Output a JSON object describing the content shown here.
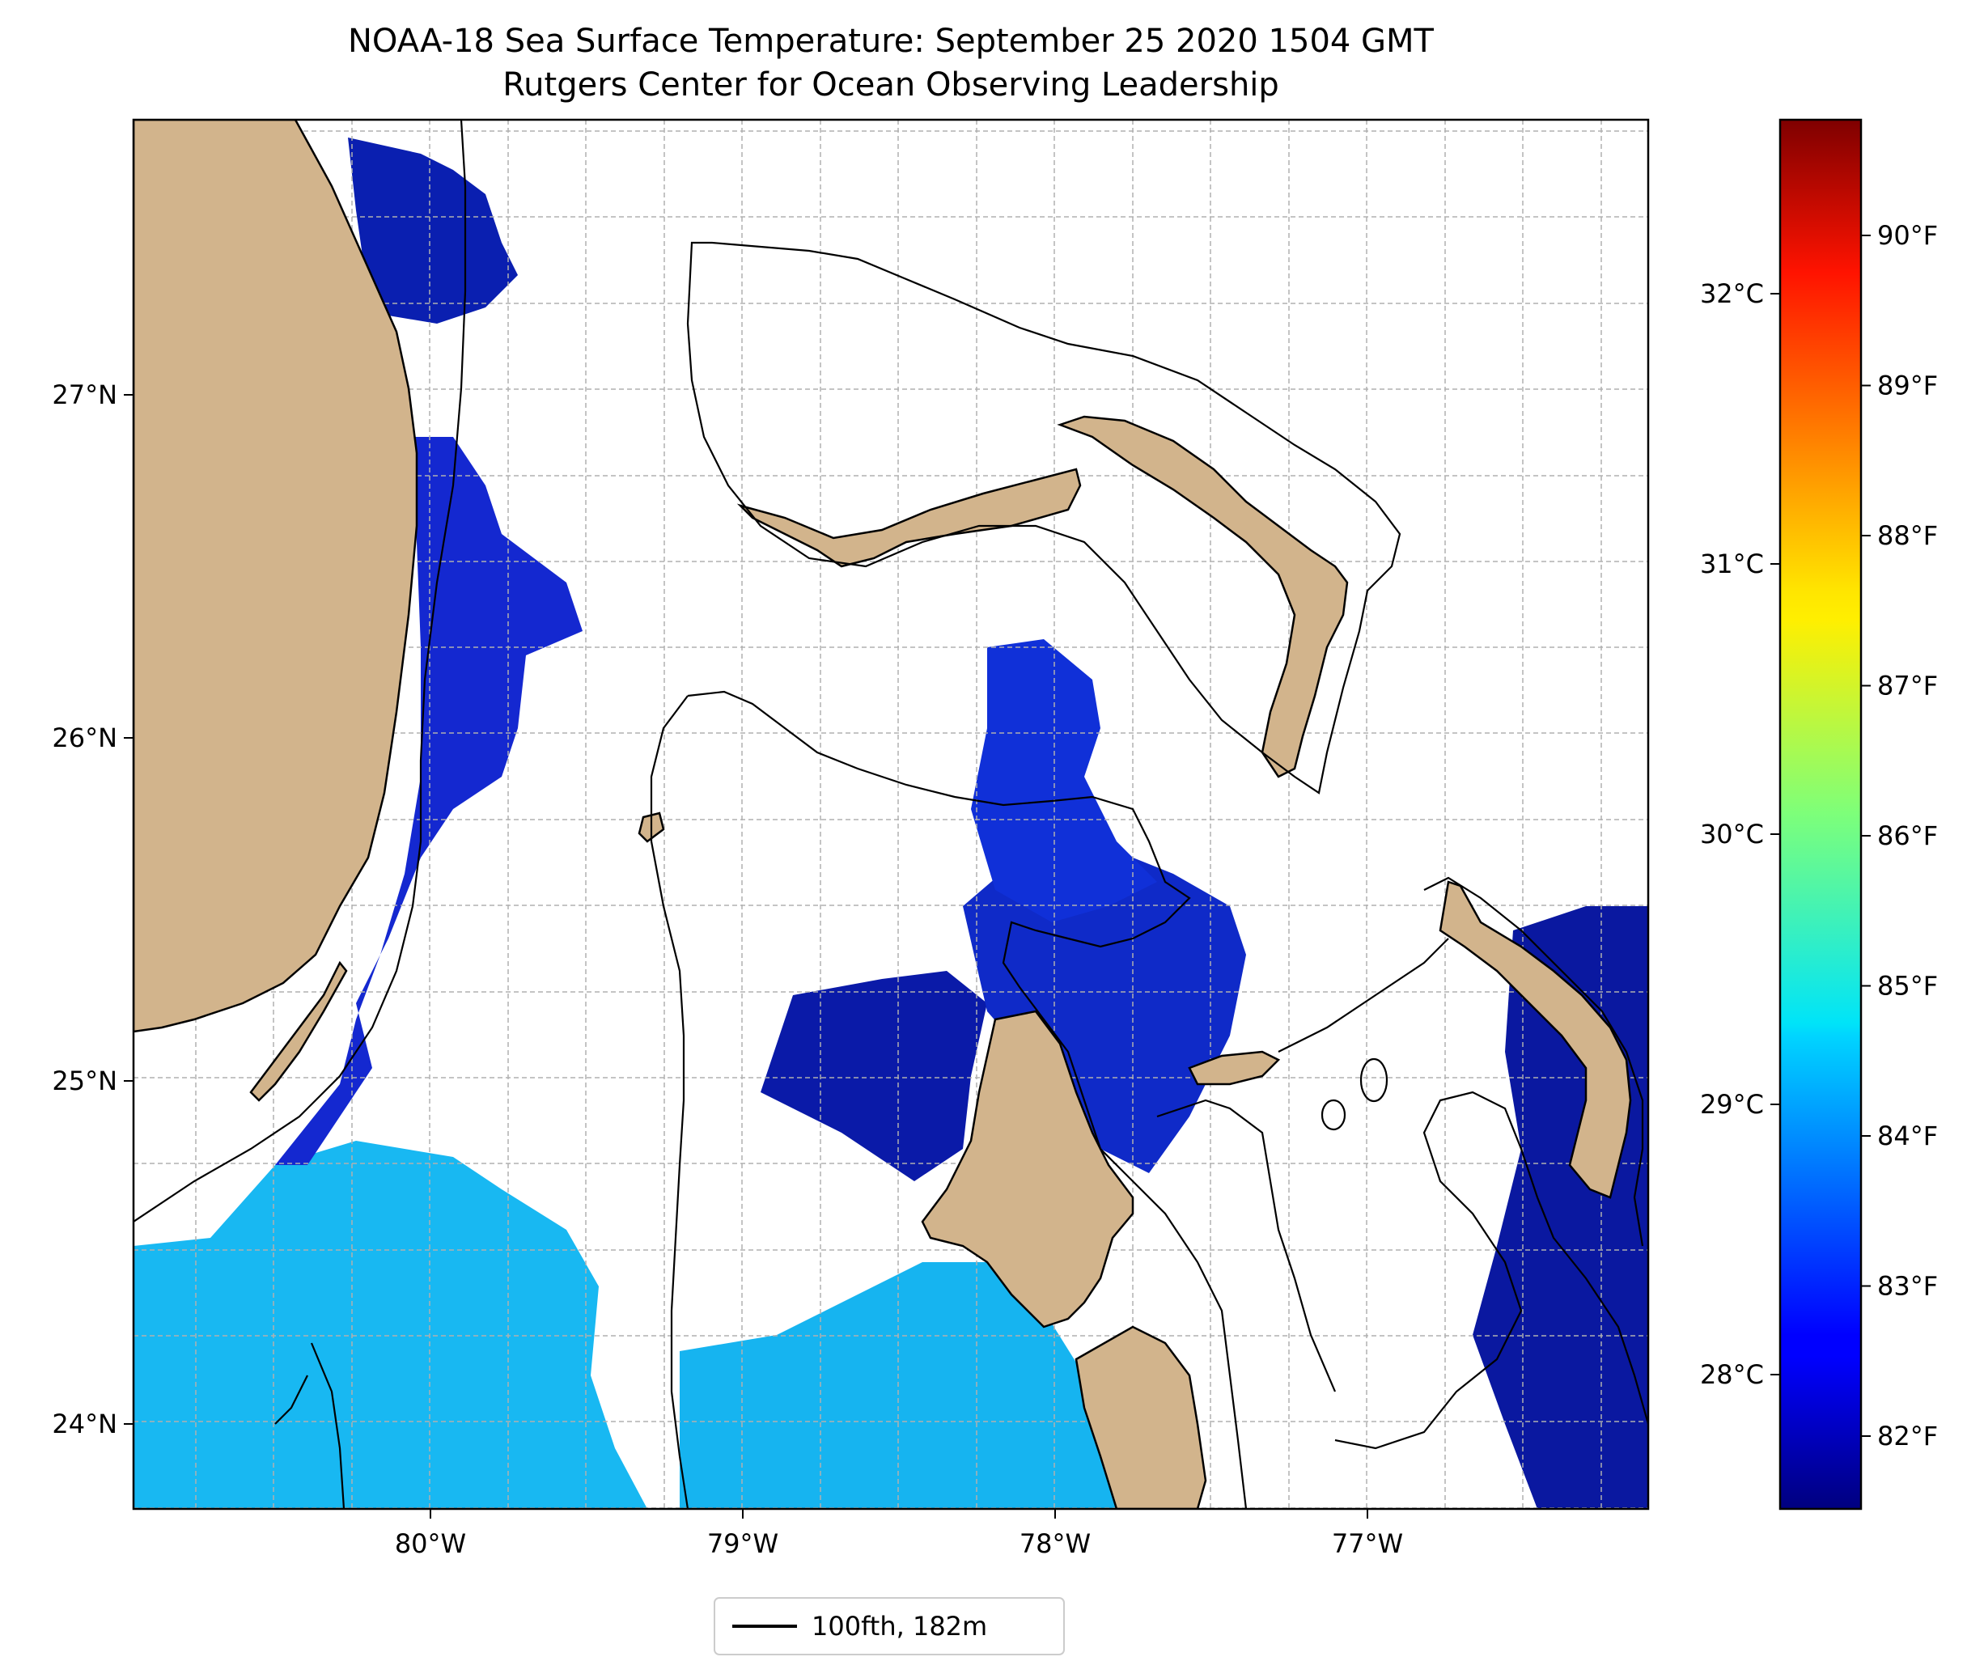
{
  "title": {
    "line1": "NOAA-18 Sea Surface Temperature: September 25 2020 1504 GMT",
    "line2": "Rutgers Center for Ocean Observing Leadership"
  },
  "map": {
    "extent": {
      "lon_min": -80.96,
      "lon_max": -76.1,
      "lat_min": 23.75,
      "lat_max": 27.8
    },
    "lon_ticks": [
      {
        "value": -80,
        "label": "80°W"
      },
      {
        "value": -79,
        "label": "79°W"
      },
      {
        "value": -78,
        "label": "78°W"
      },
      {
        "value": -77,
        "label": "77°W"
      }
    ],
    "lat_ticks": [
      {
        "value": 27,
        "label": "27°N"
      },
      {
        "value": 26,
        "label": "26°N"
      },
      {
        "value": 25,
        "label": "25°N"
      },
      {
        "value": 24,
        "label": "24°N"
      }
    ],
    "gridlines": true,
    "land_color": "#d2b48c",
    "isobath_color": "#000000"
  },
  "colorbar": {
    "colormap": "jet",
    "celsius_ticks": [
      {
        "value": 28,
        "label": "28°C"
      },
      {
        "value": 29,
        "label": "29°C"
      },
      {
        "value": 30,
        "label": "30°C"
      },
      {
        "value": 31,
        "label": "31°C"
      },
      {
        "value": 32,
        "label": "32°C"
      }
    ],
    "fahrenheit_ticks": [
      {
        "value": 82,
        "label": "82°F"
      },
      {
        "value": 83,
        "label": "83°F"
      },
      {
        "value": 84,
        "label": "84°F"
      },
      {
        "value": 85,
        "label": "85°F"
      },
      {
        "value": 86,
        "label": "86°F"
      },
      {
        "value": 87,
        "label": "87°F"
      },
      {
        "value": 88,
        "label": "88°F"
      },
      {
        "value": 89,
        "label": "89°F"
      },
      {
        "value": 90,
        "label": "90°F"
      }
    ]
  },
  "legend": {
    "placement": "bottom-center",
    "entries": [
      {
        "label": "100fth, 182m",
        "color": "#000000"
      }
    ]
  }
}
